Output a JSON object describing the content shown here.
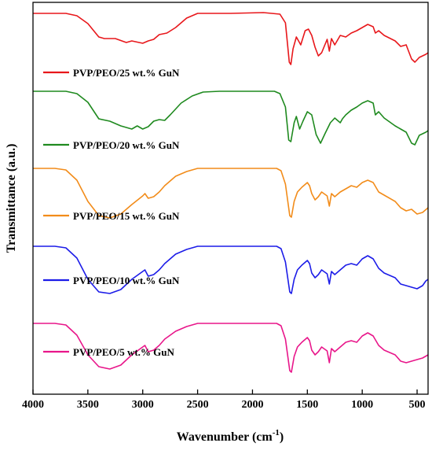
{
  "chart_data": {
    "type": "line",
    "title": "",
    "xlabel": "Wavenumber (cm",
    "xlabel_sup": "-1",
    "xlabel_close": ")",
    "ylabel": "Transmittance (a.u.)",
    "xlim": [
      4000,
      400
    ],
    "x_reversed": true,
    "x_ticks": [
      4000,
      3500,
      3000,
      2500,
      2000,
      1500,
      1000,
      500
    ],
    "x_tick_labels": [
      "4000",
      "3500",
      "3000",
      "2500",
      "2000",
      "1500",
      "1000",
      "500"
    ],
    "y_ticks_shown": false,
    "grid": false,
    "legend_placement": "below each trace, left",
    "series": [
      {
        "name": "PVP/PEO/25 wt.% GuN",
        "color": "#e8171b",
        "points": [
          [
            4000,
            0.0
          ],
          [
            3800,
            0.0
          ],
          [
            3700,
            0.0
          ],
          [
            3600,
            0.03
          ],
          [
            3500,
            0.13
          ],
          [
            3400,
            0.3
          ],
          [
            3350,
            0.32
          ],
          [
            3250,
            0.32
          ],
          [
            3150,
            0.37
          ],
          [
            3100,
            0.35
          ],
          [
            3000,
            0.38
          ],
          [
            2950,
            0.35
          ],
          [
            2900,
            0.33
          ],
          [
            2850,
            0.27
          ],
          [
            2780,
            0.25
          ],
          [
            2700,
            0.18
          ],
          [
            2600,
            0.06
          ],
          [
            2500,
            0.0
          ],
          [
            2200,
            0.0
          ],
          [
            1900,
            -0.01
          ],
          [
            1750,
            0.01
          ],
          [
            1700,
            0.12
          ],
          [
            1665,
            0.62
          ],
          [
            1650,
            0.65
          ],
          [
            1630,
            0.45
          ],
          [
            1600,
            0.3
          ],
          [
            1560,
            0.4
          ],
          [
            1520,
            0.22
          ],
          [
            1490,
            0.2
          ],
          [
            1460,
            0.28
          ],
          [
            1430,
            0.43
          ],
          [
            1400,
            0.54
          ],
          [
            1370,
            0.5
          ],
          [
            1320,
            0.33
          ],
          [
            1300,
            0.48
          ],
          [
            1280,
            0.32
          ],
          [
            1250,
            0.4
          ],
          [
            1200,
            0.28
          ],
          [
            1150,
            0.3
          ],
          [
            1100,
            0.25
          ],
          [
            1050,
            0.22
          ],
          [
            1000,
            0.18
          ],
          [
            950,
            0.14
          ],
          [
            900,
            0.17
          ],
          [
            880,
            0.25
          ],
          [
            850,
            0.22
          ],
          [
            800,
            0.28
          ],
          [
            700,
            0.35
          ],
          [
            650,
            0.42
          ],
          [
            600,
            0.4
          ],
          [
            550,
            0.58
          ],
          [
            520,
            0.62
          ],
          [
            480,
            0.56
          ],
          [
            420,
            0.52
          ],
          [
            400,
            0.5
          ]
        ]
      },
      {
        "name": "PVP/PEO/20 wt.% GuN",
        "color": "#1f8a1f",
        "points": [
          [
            4000,
            0.0
          ],
          [
            3800,
            0.0
          ],
          [
            3700,
            0.0
          ],
          [
            3600,
            0.03
          ],
          [
            3500,
            0.14
          ],
          [
            3400,
            0.35
          ],
          [
            3300,
            0.38
          ],
          [
            3200,
            0.44
          ],
          [
            3100,
            0.48
          ],
          [
            3050,
            0.44
          ],
          [
            3000,
            0.48
          ],
          [
            2950,
            0.45
          ],
          [
            2900,
            0.38
          ],
          [
            2850,
            0.36
          ],
          [
            2800,
            0.37
          ],
          [
            2750,
            0.3
          ],
          [
            2650,
            0.15
          ],
          [
            2550,
            0.06
          ],
          [
            2450,
            0.01
          ],
          [
            2300,
            0.0
          ],
          [
            2000,
            0.0
          ],
          [
            1800,
            0.0
          ],
          [
            1750,
            0.03
          ],
          [
            1700,
            0.2
          ],
          [
            1670,
            0.62
          ],
          [
            1650,
            0.64
          ],
          [
            1620,
            0.4
          ],
          [
            1600,
            0.32
          ],
          [
            1570,
            0.48
          ],
          [
            1540,
            0.38
          ],
          [
            1500,
            0.26
          ],
          [
            1460,
            0.3
          ],
          [
            1420,
            0.55
          ],
          [
            1380,
            0.66
          ],
          [
            1340,
            0.54
          ],
          [
            1290,
            0.4
          ],
          [
            1250,
            0.34
          ],
          [
            1200,
            0.4
          ],
          [
            1180,
            0.35
          ],
          [
            1150,
            0.3
          ],
          [
            1100,
            0.24
          ],
          [
            1050,
            0.2
          ],
          [
            1000,
            0.15
          ],
          [
            950,
            0.12
          ],
          [
            900,
            0.15
          ],
          [
            880,
            0.3
          ],
          [
            850,
            0.26
          ],
          [
            800,
            0.34
          ],
          [
            760,
            0.38
          ],
          [
            700,
            0.44
          ],
          [
            650,
            0.48
          ],
          [
            600,
            0.52
          ],
          [
            550,
            0.66
          ],
          [
            520,
            0.68
          ],
          [
            480,
            0.56
          ],
          [
            420,
            0.52
          ],
          [
            400,
            0.5
          ]
        ]
      },
      {
        "name": "PVP/PEO/15 wt.% GuN",
        "color": "#f28c1a",
        "points": [
          [
            4000,
            0.0
          ],
          [
            3800,
            0.0
          ],
          [
            3700,
            0.02
          ],
          [
            3600,
            0.15
          ],
          [
            3500,
            0.42
          ],
          [
            3400,
            0.6
          ],
          [
            3300,
            0.63
          ],
          [
            3200,
            0.58
          ],
          [
            3100,
            0.46
          ],
          [
            3000,
            0.35
          ],
          [
            2980,
            0.32
          ],
          [
            2950,
            0.38
          ],
          [
            2900,
            0.36
          ],
          [
            2850,
            0.3
          ],
          [
            2800,
            0.22
          ],
          [
            2700,
            0.1
          ],
          [
            2600,
            0.04
          ],
          [
            2500,
            0.0
          ],
          [
            2200,
            0.0
          ],
          [
            1900,
            0.0
          ],
          [
            1780,
            0.0
          ],
          [
            1740,
            0.03
          ],
          [
            1700,
            0.2
          ],
          [
            1660,
            0.6
          ],
          [
            1645,
            0.62
          ],
          [
            1620,
            0.42
          ],
          [
            1590,
            0.3
          ],
          [
            1550,
            0.24
          ],
          [
            1500,
            0.18
          ],
          [
            1480,
            0.22
          ],
          [
            1460,
            0.32
          ],
          [
            1430,
            0.4
          ],
          [
            1400,
            0.36
          ],
          [
            1370,
            0.3
          ],
          [
            1320,
            0.35
          ],
          [
            1300,
            0.48
          ],
          [
            1280,
            0.32
          ],
          [
            1250,
            0.36
          ],
          [
            1200,
            0.3
          ],
          [
            1150,
            0.26
          ],
          [
            1100,
            0.22
          ],
          [
            1050,
            0.24
          ],
          [
            1000,
            0.18
          ],
          [
            950,
            0.15
          ],
          [
            900,
            0.18
          ],
          [
            850,
            0.3
          ],
          [
            800,
            0.34
          ],
          [
            700,
            0.42
          ],
          [
            650,
            0.5
          ],
          [
            600,
            0.54
          ],
          [
            550,
            0.52
          ],
          [
            500,
            0.58
          ],
          [
            450,
            0.56
          ],
          [
            400,
            0.5
          ]
        ]
      },
      {
        "name": "PVP/PEO/10 wt.% GuN",
        "color": "#1c1ce8",
        "points": [
          [
            4000,
            0.0
          ],
          [
            3800,
            0.0
          ],
          [
            3700,
            0.02
          ],
          [
            3600,
            0.15
          ],
          [
            3500,
            0.42
          ],
          [
            3400,
            0.58
          ],
          [
            3300,
            0.6
          ],
          [
            3200,
            0.55
          ],
          [
            3100,
            0.42
          ],
          [
            3000,
            0.32
          ],
          [
            2980,
            0.3
          ],
          [
            2950,
            0.38
          ],
          [
            2900,
            0.36
          ],
          [
            2850,
            0.3
          ],
          [
            2800,
            0.22
          ],
          [
            2700,
            0.1
          ],
          [
            2600,
            0.04
          ],
          [
            2500,
            0.0
          ],
          [
            2200,
            0.0
          ],
          [
            1900,
            0.0
          ],
          [
            1780,
            0.0
          ],
          [
            1740,
            0.03
          ],
          [
            1700,
            0.2
          ],
          [
            1660,
            0.58
          ],
          [
            1645,
            0.6
          ],
          [
            1620,
            0.42
          ],
          [
            1590,
            0.3
          ],
          [
            1550,
            0.24
          ],
          [
            1500,
            0.18
          ],
          [
            1480,
            0.22
          ],
          [
            1460,
            0.34
          ],
          [
            1430,
            0.4
          ],
          [
            1400,
            0.36
          ],
          [
            1370,
            0.3
          ],
          [
            1320,
            0.35
          ],
          [
            1300,
            0.48
          ],
          [
            1280,
            0.32
          ],
          [
            1250,
            0.36
          ],
          [
            1200,
            0.3
          ],
          [
            1150,
            0.24
          ],
          [
            1100,
            0.22
          ],
          [
            1050,
            0.24
          ],
          [
            1000,
            0.16
          ],
          [
            950,
            0.12
          ],
          [
            900,
            0.16
          ],
          [
            850,
            0.28
          ],
          [
            800,
            0.34
          ],
          [
            700,
            0.4
          ],
          [
            650,
            0.48
          ],
          [
            600,
            0.5
          ],
          [
            550,
            0.52
          ],
          [
            500,
            0.54
          ],
          [
            450,
            0.5
          ],
          [
            420,
            0.44
          ],
          [
            400,
            0.42
          ]
        ]
      },
      {
        "name": "PVP/PEO/5 wt.% GuN",
        "color": "#e8168a",
        "points": [
          [
            4000,
            0.0
          ],
          [
            3800,
            0.0
          ],
          [
            3700,
            0.02
          ],
          [
            3600,
            0.15
          ],
          [
            3500,
            0.4
          ],
          [
            3400,
            0.55
          ],
          [
            3300,
            0.58
          ],
          [
            3200,
            0.53
          ],
          [
            3100,
            0.4
          ],
          [
            3000,
            0.3
          ],
          [
            2980,
            0.28
          ],
          [
            2950,
            0.36
          ],
          [
            2900,
            0.34
          ],
          [
            2850,
            0.28
          ],
          [
            2800,
            0.2
          ],
          [
            2700,
            0.1
          ],
          [
            2600,
            0.04
          ],
          [
            2500,
            0.0
          ],
          [
            2200,
            0.0
          ],
          [
            1900,
            0.0
          ],
          [
            1780,
            0.0
          ],
          [
            1740,
            0.03
          ],
          [
            1700,
            0.2
          ],
          [
            1660,
            0.6
          ],
          [
            1645,
            0.62
          ],
          [
            1620,
            0.42
          ],
          [
            1590,
            0.3
          ],
          [
            1550,
            0.24
          ],
          [
            1500,
            0.18
          ],
          [
            1480,
            0.22
          ],
          [
            1460,
            0.34
          ],
          [
            1430,
            0.4
          ],
          [
            1400,
            0.36
          ],
          [
            1370,
            0.3
          ],
          [
            1320,
            0.35
          ],
          [
            1300,
            0.5
          ],
          [
            1280,
            0.32
          ],
          [
            1250,
            0.36
          ],
          [
            1200,
            0.3
          ],
          [
            1150,
            0.24
          ],
          [
            1100,
            0.22
          ],
          [
            1050,
            0.24
          ],
          [
            1000,
            0.16
          ],
          [
            950,
            0.12
          ],
          [
            900,
            0.16
          ],
          [
            850,
            0.28
          ],
          [
            800,
            0.34
          ],
          [
            700,
            0.4
          ],
          [
            650,
            0.48
          ],
          [
            600,
            0.5
          ],
          [
            550,
            0.48
          ],
          [
            500,
            0.46
          ],
          [
            450,
            0.44
          ],
          [
            400,
            0.4
          ]
        ]
      }
    ]
  }
}
